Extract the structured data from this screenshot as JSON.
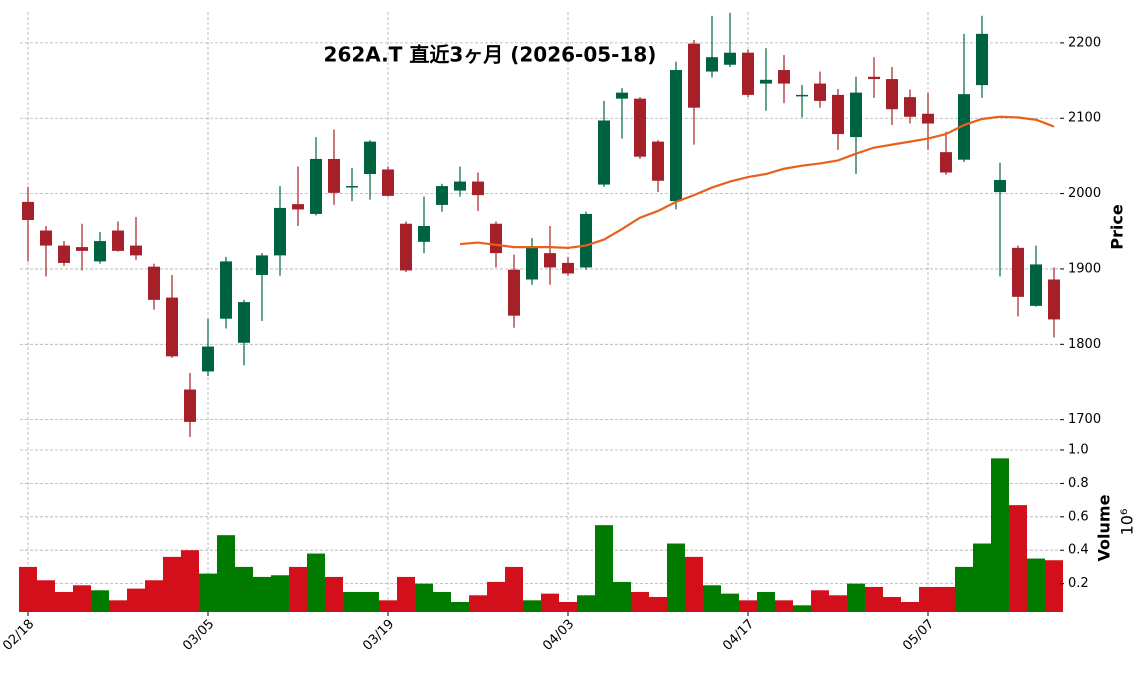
{
  "chart_data": {
    "type": "candlestick",
    "title": "262A.T  直近3ヶ月  (2026-05-18)",
    "categories": [
      "02/18",
      null,
      null,
      null,
      null,
      null,
      null,
      null,
      null,
      null,
      "03/05",
      null,
      null,
      null,
      null,
      null,
      null,
      null,
      null,
      null,
      "03/19",
      null,
      null,
      null,
      null,
      null,
      null,
      null,
      null,
      null,
      "04/03",
      null,
      null,
      null,
      null,
      null,
      null,
      null,
      null,
      null,
      "04/17",
      null,
      null,
      null,
      null,
      null,
      null,
      null,
      null,
      null,
      "05/07",
      null,
      null,
      null,
      null,
      null,
      null,
      null
    ],
    "open": [
      1989,
      1951,
      1931,
      1929,
      1910,
      1951,
      1931,
      1903,
      1862,
      1740,
      1764,
      1834,
      1802,
      1892,
      1918,
      1986,
      1973,
      2046,
      2009,
      2026,
      2032,
      1960,
      1936,
      1985,
      2004,
      2016,
      1960,
      1899,
      1886,
      1921,
      1908,
      1902,
      2012,
      2126,
      2126,
      2069,
      1990,
      2199,
      2162,
      2171,
      2187,
      2146,
      2164,
      2130,
      2146,
      2131,
      2075,
      2155,
      2152,
      2128,
      2106,
      2055,
      2045,
      2144,
      2002,
      1928,
      1851,
      1886
    ],
    "high": [
      2009,
      1957,
      1937,
      1960,
      1949,
      1963,
      1969,
      1907,
      1892,
      1762,
      1834,
      1916,
      1859,
      1921,
      2010,
      2036,
      2075,
      2085,
      2034,
      2071,
      2036,
      1963,
      1996,
      2013,
      2036,
      2028,
      1963,
      1919,
      1941,
      1957,
      1916,
      1976,
      2123,
      2140,
      2128,
      2071,
      2175,
      2204,
      2236,
      2240,
      2191,
      2193,
      2184,
      2144,
      2162,
      2139,
      2155,
      2181,
      2168,
      2138,
      2134,
      2082,
      2212,
      2236,
      2041,
      1931,
      1931,
      1902
    ],
    "low": [
      1910,
      1890,
      1904,
      1898,
      1907,
      1923,
      1912,
      1846,
      1782,
      1677,
      1758,
      1821,
      1772,
      1831,
      1891,
      1957,
      1971,
      1985,
      1990,
      1992,
      1996,
      1896,
      1921,
      1976,
      1996,
      1977,
      1902,
      1822,
      1879,
      1879,
      1891,
      1899,
      2009,
      2073,
      2046,
      2002,
      1979,
      2065,
      2154,
      2168,
      2128,
      2110,
      2120,
      2101,
      2114,
      2058,
      2026,
      2127,
      2091,
      2093,
      2058,
      2025,
      2042,
      2127,
      1890,
      1837,
      1850,
      1809
    ],
    "close": [
      1965,
      1931,
      1908,
      1924,
      1937,
      1924,
      1918,
      1859,
      1784,
      1697,
      1797,
      1910,
      1856,
      1918,
      1981,
      1979,
      2046,
      2001,
      2010,
      2069,
      1997,
      1898,
      1957,
      2010,
      2016,
      1998,
      1921,
      1838,
      1929,
      1902,
      1894,
      1973,
      2097,
      2134,
      2049,
      2017,
      2164,
      2114,
      2181,
      2187,
      2131,
      2151,
      2146,
      2131,
      2123,
      2079,
      2134,
      2152,
      2112,
      2102,
      2093,
      2028,
      2132,
      2212,
      2018,
      1863,
      1906,
      1833
    ],
    "up_color": "#006340",
    "down_color": "#a52029",
    "ylabel": "Price",
    "ylim": [
      1673,
      2241
    ],
    "yticks": [
      1700,
      1800,
      1900,
      2000,
      2100,
      2200
    ],
    "grid": true,
    "ma": {
      "color": "#e8601c",
      "values": [
        null,
        null,
        null,
        null,
        null,
        null,
        null,
        null,
        null,
        null,
        null,
        null,
        null,
        null,
        null,
        null,
        null,
        null,
        null,
        null,
        null,
        null,
        null,
        null,
        1933,
        1935,
        1932,
        1929,
        1929,
        1929,
        1928,
        1931,
        1939,
        1953,
        1968,
        1977,
        1989,
        1998,
        2008,
        2016,
        2022,
        2026,
        2033,
        2037,
        2040,
        2044,
        2053,
        2061,
        2065,
        2069,
        2073,
        2079,
        2091,
        2099,
        2102,
        2101,
        2098,
        2089
      ]
    },
    "volume": {
      "ylabel": "Volume",
      "offset_label": "10⁶",
      "up_color": "#007b00",
      "down_color": "#d40f1c",
      "values": [
        0.3,
        0.22,
        0.15,
        0.19,
        0.16,
        0.1,
        0.17,
        0.22,
        0.36,
        0.4,
        0.26,
        0.49,
        0.3,
        0.24,
        0.25,
        0.3,
        0.38,
        0.24,
        0.15,
        0.15,
        0.1,
        0.24,
        0.2,
        0.15,
        0.09,
        0.13,
        0.21,
        0.3,
        0.1,
        0.14,
        0.09,
        0.13,
        0.55,
        0.21,
        0.15,
        0.12,
        0.44,
        0.36,
        0.19,
        0.14,
        0.1,
        0.15,
        0.1,
        0.07,
        0.16,
        0.13,
        0.2,
        0.18,
        0.12,
        0.09,
        0.18,
        0.18,
        0.3,
        0.44,
        0.95,
        0.67,
        0.35,
        0.34
      ],
      "ylim": [
        0.03,
        1.03
      ],
      "yticks": [
        0.2,
        0.4,
        0.6,
        0.8,
        {
          "value": 1,
          "label": "1.0"
        }
      ]
    }
  }
}
